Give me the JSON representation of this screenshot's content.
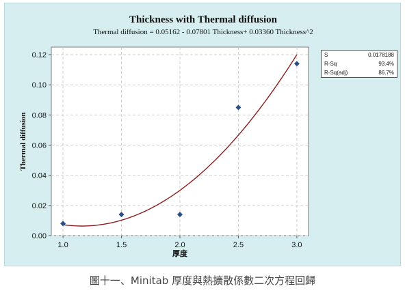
{
  "chart_data": {
    "type": "scatter",
    "title": "Thickness with Thermal diffusion",
    "subtitle": "Thermal diffusion = 0.05162 - 0.07801 Thickness+ 0.03360 Thickness^2",
    "xlabel": "厚度",
    "ylabel": "Thermal diffusion",
    "xlim": [
      0.9,
      3.1
    ],
    "ylim": [
      0.0,
      0.125
    ],
    "xticks": [
      "1.0",
      "1.5",
      "2.0",
      "2.5",
      "3.0"
    ],
    "yticks": [
      "0.00",
      "0.02",
      "0.04",
      "0.06",
      "0.08",
      "0.10",
      "0.12"
    ],
    "grid": true,
    "points": {
      "x": [
        1.0,
        1.5,
        2.0,
        2.5,
        3.0
      ],
      "y": [
        0.008,
        0.014,
        0.014,
        0.085,
        0.114
      ]
    },
    "fit": {
      "intercept": 0.05162,
      "b1": -0.07801,
      "b2": 0.0336
    },
    "stats": [
      {
        "label": "S",
        "value": "0.0178188"
      },
      {
        "label": "R-Sq",
        "value": "93.4%"
      },
      {
        "label": "R-Sq(adj)",
        "value": "86.7%"
      }
    ],
    "colors": {
      "point": "#2a4f86",
      "fit": "#8b1e1e",
      "frame": "#d6eef0"
    }
  },
  "caption": "圖十一、Minitab 厚度與熱擴散係數二次方程回歸"
}
